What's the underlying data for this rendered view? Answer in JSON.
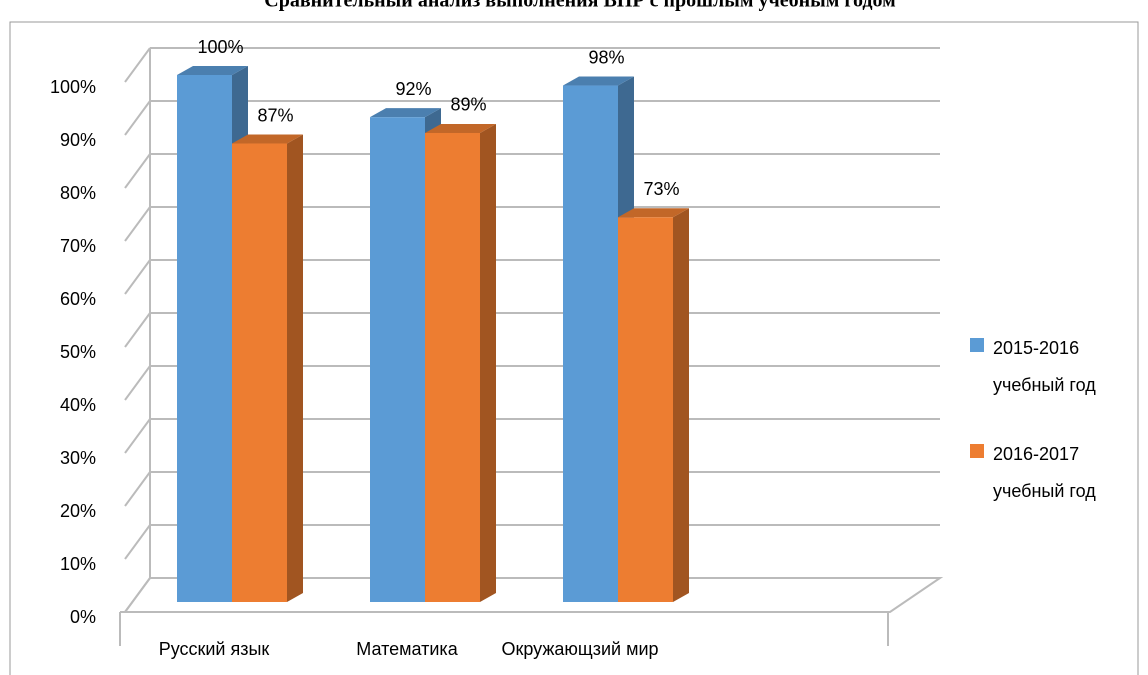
{
  "chart_data": {
    "type": "bar3d",
    "title": "Сравнительный анализ выполнения ВПР с прошлым учебным годом",
    "categories": [
      "Русский язык",
      "Математика",
      "Окружающзий мир"
    ],
    "series": [
      {
        "name": "2015-2016 учебный год",
        "color": "#5b9bd5",
        "values": [
          100,
          92,
          98
        ],
        "value_labels": [
          "100%",
          "92%",
          "98%"
        ]
      },
      {
        "name": "2016-2017 учебный год",
        "color": "#ed7d31",
        "values": [
          87,
          89,
          73
        ],
        "value_labels": [
          "87%",
          "89%",
          "73%"
        ]
      }
    ],
    "ylim": [
      0,
      100
    ],
    "yticks": [
      {
        "value": 0,
        "label": "0%"
      },
      {
        "value": 10,
        "label": "10%"
      },
      {
        "value": 20,
        "label": "20%"
      },
      {
        "value": 30,
        "label": "30%"
      },
      {
        "value": 40,
        "label": "40%"
      },
      {
        "value": 50,
        "label": "50%"
      },
      {
        "value": 60,
        "label": "60%"
      },
      {
        "value": 70,
        "label": "70%"
      },
      {
        "value": 80,
        "label": "80%"
      },
      {
        "value": 90,
        "label": "90%"
      },
      {
        "value": 100,
        "label": "100%"
      }
    ],
    "grid": true,
    "legend": "right"
  }
}
